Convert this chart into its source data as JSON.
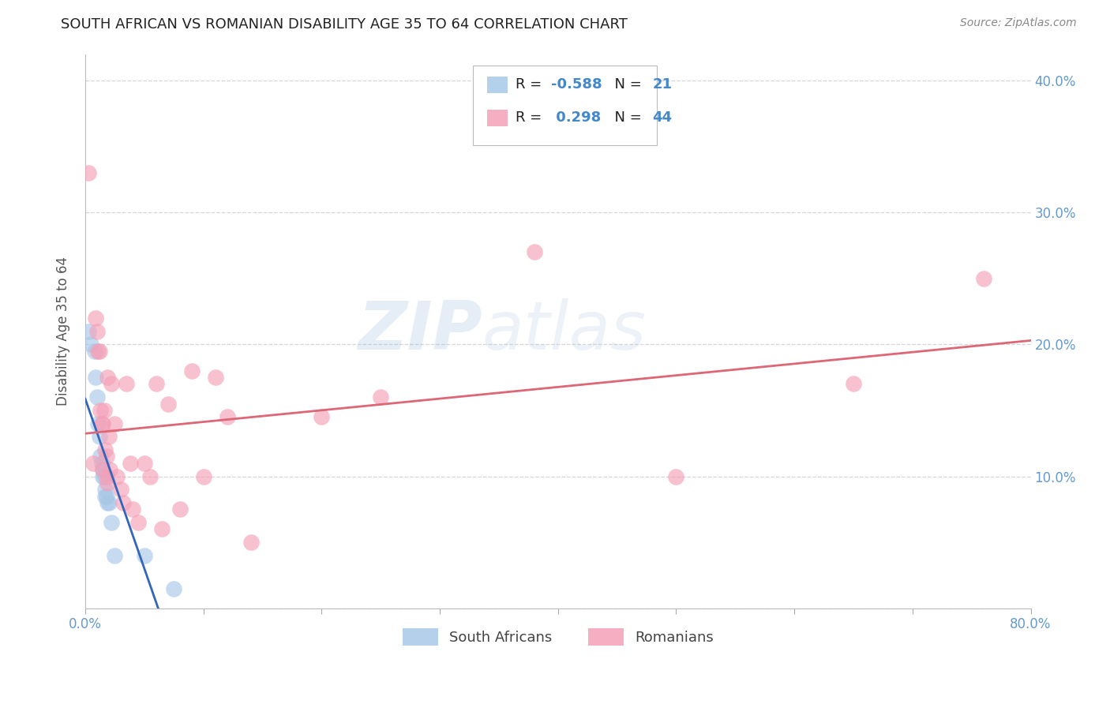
{
  "title": "SOUTH AFRICAN VS ROMANIAN DISABILITY AGE 35 TO 64 CORRELATION CHART",
  "source": "Source: ZipAtlas.com",
  "ylabel": "Disability Age 35 to 64",
  "xmin": 0.0,
  "xmax": 0.8,
  "ymin": 0.0,
  "ymax": 0.42,
  "grid_color": "#cccccc",
  "background_color": "#ffffff",
  "watermark_zip": "ZIP",
  "watermark_atlas": "atlas",
  "legend_r_sa": "-0.588",
  "legend_n_sa": "21",
  "legend_r_ro": " 0.298",
  "legend_n_ro": "44",
  "sa_color": "#a8c8e8",
  "ro_color": "#f4a0b8",
  "sa_line_color": "#3366bb",
  "ro_line_color": "#dd6677",
  "tick_color": "#6699cc",
  "ylabel_color": "#555555",
  "sa_points_x": [
    0.003,
    0.005,
    0.008,
    0.009,
    0.01,
    0.011,
    0.012,
    0.013,
    0.014,
    0.015,
    0.015,
    0.016,
    0.017,
    0.017,
    0.018,
    0.019,
    0.02,
    0.022,
    0.025,
    0.05,
    0.075
  ],
  "sa_points_y": [
    0.21,
    0.2,
    0.195,
    0.175,
    0.16,
    0.14,
    0.13,
    0.115,
    0.11,
    0.105,
    0.1,
    0.1,
    0.09,
    0.085,
    0.085,
    0.08,
    0.08,
    0.065,
    0.04,
    0.04,
    0.015
  ],
  "ro_points_x": [
    0.003,
    0.007,
    0.009,
    0.01,
    0.011,
    0.012,
    0.013,
    0.014,
    0.015,
    0.015,
    0.016,
    0.017,
    0.018,
    0.018,
    0.019,
    0.019,
    0.02,
    0.021,
    0.022,
    0.025,
    0.027,
    0.03,
    0.032,
    0.035,
    0.038,
    0.04,
    0.045,
    0.05,
    0.055,
    0.06,
    0.065,
    0.07,
    0.08,
    0.09,
    0.1,
    0.11,
    0.12,
    0.14,
    0.2,
    0.25,
    0.38,
    0.5,
    0.65,
    0.76
  ],
  "ro_points_y": [
    0.33,
    0.11,
    0.22,
    0.21,
    0.195,
    0.195,
    0.15,
    0.14,
    0.14,
    0.105,
    0.15,
    0.12,
    0.115,
    0.1,
    0.175,
    0.095,
    0.13,
    0.105,
    0.17,
    0.14,
    0.1,
    0.09,
    0.08,
    0.17,
    0.11,
    0.075,
    0.065,
    0.11,
    0.1,
    0.17,
    0.06,
    0.155,
    0.075,
    0.18,
    0.1,
    0.175,
    0.145,
    0.05,
    0.145,
    0.16,
    0.27,
    0.1,
    0.17,
    0.25
  ]
}
